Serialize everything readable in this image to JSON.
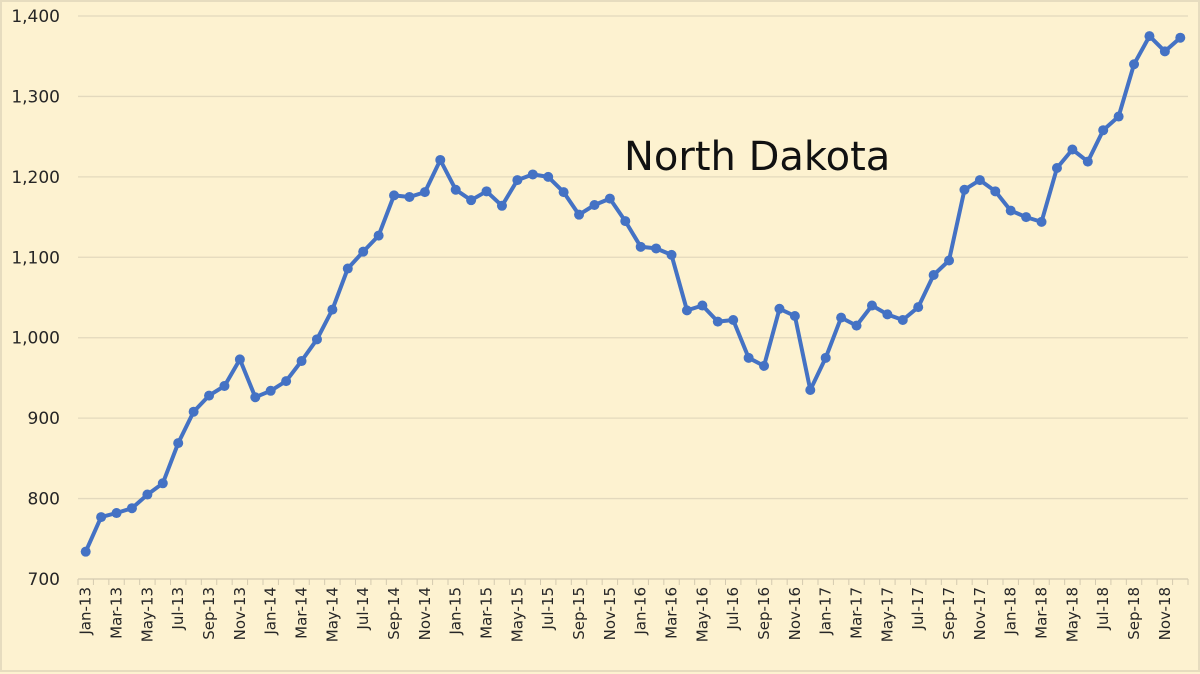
{
  "chart_data": {
    "type": "line",
    "title": "North Dakota",
    "xlabel": "",
    "ylabel": "",
    "ylim": [
      700,
      1400
    ],
    "yticks": [
      "700",
      "800",
      "900",
      "1,000",
      "1,100",
      "1,200",
      "1,300",
      "1,400"
    ],
    "ytick_values": [
      700,
      800,
      900,
      1000,
      1100,
      1200,
      1300,
      1400
    ],
    "grid": true,
    "legend": null,
    "xtick_labels": [
      "Jan-13",
      "Mar-13",
      "May-13",
      "Jul-13",
      "Sep-13",
      "Nov-13",
      "Jan-14",
      "Mar-14",
      "May-14",
      "Jul-14",
      "Sep-14",
      "Nov-14",
      "Jan-15",
      "Mar-15",
      "May-15",
      "Jul-15",
      "Sep-15",
      "Nov-15",
      "Jan-16",
      "Mar-16",
      "May-16",
      "Jul-16",
      "Sep-16",
      "Nov-16",
      "Jan-17",
      "Mar-17",
      "May-17",
      "Jul-17",
      "Sep-17",
      "Nov-17",
      "Jan-18",
      "Mar-18",
      "May-18",
      "Jul-18",
      "Sep-18",
      "Nov-18"
    ],
    "x": [
      "Jan-13",
      "Feb-13",
      "Mar-13",
      "Apr-13",
      "May-13",
      "Jun-13",
      "Jul-13",
      "Aug-13",
      "Sep-13",
      "Oct-13",
      "Nov-13",
      "Dec-13",
      "Jan-14",
      "Feb-14",
      "Mar-14",
      "Apr-14",
      "May-14",
      "Jun-14",
      "Jul-14",
      "Aug-14",
      "Sep-14",
      "Oct-14",
      "Nov-14",
      "Dec-14",
      "Jan-15",
      "Feb-15",
      "Mar-15",
      "Apr-15",
      "May-15",
      "Jun-15",
      "Jul-15",
      "Aug-15",
      "Sep-15",
      "Oct-15",
      "Nov-15",
      "Dec-15",
      "Jan-16",
      "Feb-16",
      "Mar-16",
      "Apr-16",
      "May-16",
      "Jun-16",
      "Jul-16",
      "Aug-16",
      "Sep-16",
      "Oct-16",
      "Nov-16",
      "Dec-16",
      "Jan-17",
      "Feb-17",
      "Mar-17",
      "Apr-17",
      "May-17",
      "Jun-17",
      "Jul-17",
      "Aug-17",
      "Sep-17",
      "Oct-17",
      "Nov-17",
      "Dec-17",
      "Jan-18",
      "Feb-18",
      "Mar-18",
      "Apr-18",
      "May-18",
      "Jun-18",
      "Jul-18",
      "Aug-18",
      "Sep-18",
      "Oct-18",
      "Nov-18",
      "Dec-18"
    ],
    "series": [
      {
        "name": "North Dakota",
        "color": "#4472c4",
        "values": [
          734,
          777,
          782,
          788,
          805,
          819,
          869,
          908,
          928,
          940,
          973,
          926,
          934,
          946,
          971,
          998,
          1035,
          1086,
          1107,
          1127,
          1177,
          1175,
          1181,
          1221,
          1184,
          1171,
          1182,
          1164,
          1196,
          1203,
          1200,
          1181,
          1153,
          1165,
          1173,
          1145,
          1113,
          1111,
          1103,
          1034,
          1040,
          1020,
          1022,
          975,
          965,
          1036,
          1027,
          935,
          975,
          1025,
          1015,
          1040,
          1029,
          1022,
          1038,
          1078,
          1096,
          1184,
          1196,
          1182,
          1158,
          1150,
          1144,
          1211,
          1234,
          1219,
          1258,
          1275,
          1340,
          1375,
          1356,
          1373
        ]
      }
    ]
  },
  "colors": {
    "background": "#fdf2d0",
    "gridline": "#e3d9bd",
    "line": "#4472c4",
    "text": "#262626"
  }
}
